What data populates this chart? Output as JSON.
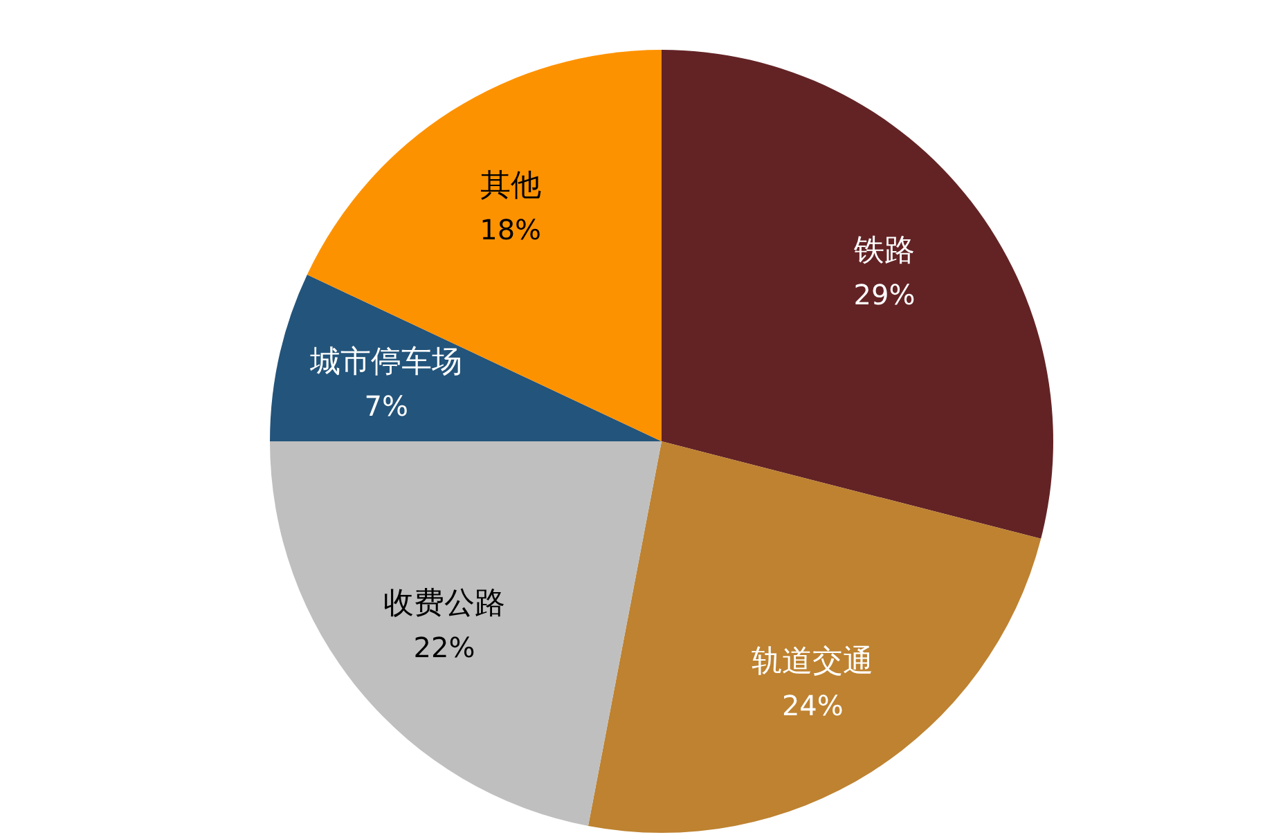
{
  "chart_data": {
    "type": "pie",
    "categories": [
      "铁路",
      "轨道交通",
      "收费公路",
      "城市停车场",
      "其他"
    ],
    "values": [
      29,
      24,
      22,
      7,
      18
    ],
    "colors": [
      "#632325",
      "#be8230",
      "#bfbfbf",
      "#23547b",
      "#fd9200"
    ],
    "value_labels": [
      "29%",
      "24%",
      "22%",
      "7%",
      "18%"
    ]
  }
}
